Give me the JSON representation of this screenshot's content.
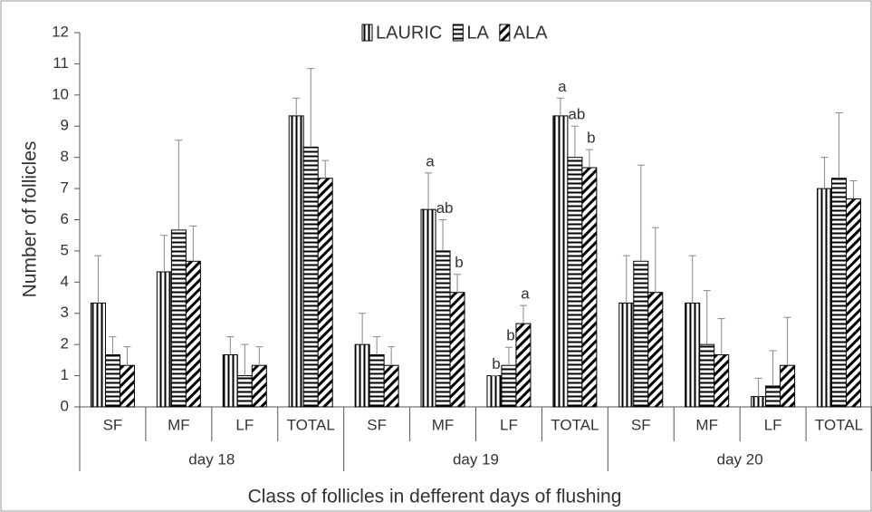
{
  "chart_data": {
    "type": "bar",
    "ylabel": "Number of follicles",
    "xlabel": "Class of follicles in defferent days of flushing",
    "categories": [
      "SF",
      "MF",
      "LF",
      "TOTAL",
      "SF",
      "MF",
      "LF",
      "TOTAL",
      "SF",
      "MF",
      "LF",
      "TOTAL"
    ],
    "groups": [
      "day 18",
      "day 19",
      "day 20"
    ],
    "ylim": [
      0,
      12
    ],
    "yticks": [
      0,
      1,
      2,
      3,
      4,
      5,
      6,
      7,
      8,
      9,
      10,
      11,
      12
    ],
    "legend": "top",
    "series": [
      {
        "name": "LAURIC",
        "color": "#000000",
        "hatch": "vertical",
        "values": [
          3.33,
          4.33,
          1.67,
          9.33,
          2.0,
          6.33,
          1.0,
          9.33,
          3.33,
          3.33,
          0.33,
          7.0
        ],
        "errors": [
          1.52,
          1.17,
          0.58,
          0.57,
          1.0,
          1.17,
          0,
          0.57,
          1.52,
          1.52,
          0.59,
          1.0
        ],
        "annotations": [
          null,
          null,
          null,
          null,
          null,
          "a",
          "b",
          "a",
          null,
          null,
          null,
          null
        ]
      },
      {
        "name": "LA",
        "color": "#000000",
        "hatch": "horizontal",
        "values": [
          1.67,
          5.67,
          1.0,
          8.33,
          1.67,
          5.0,
          1.33,
          8.0,
          4.67,
          2.0,
          0.67,
          7.33
        ],
        "errors": [
          0.58,
          2.88,
          1.0,
          2.52,
          0.58,
          1.0,
          0.58,
          1.0,
          3.08,
          1.73,
          1.13,
          2.1
        ],
        "annotations": [
          null,
          null,
          null,
          null,
          null,
          "ab",
          "b",
          "ab",
          null,
          null,
          null,
          null
        ]
      },
      {
        "name": "ALA",
        "color": "#000000",
        "hatch": "diagonal",
        "values": [
          1.33,
          4.67,
          1.33,
          7.33,
          1.33,
          3.67,
          2.67,
          7.67,
          3.67,
          1.67,
          1.33,
          6.67
        ],
        "errors": [
          0.6,
          1.13,
          0.6,
          0.57,
          0.6,
          0.58,
          0.58,
          0.58,
          2.08,
          1.16,
          1.54,
          0.58
        ],
        "annotations": [
          null,
          null,
          null,
          null,
          null,
          "b",
          "a",
          "b",
          null,
          null,
          null,
          null
        ]
      }
    ]
  }
}
